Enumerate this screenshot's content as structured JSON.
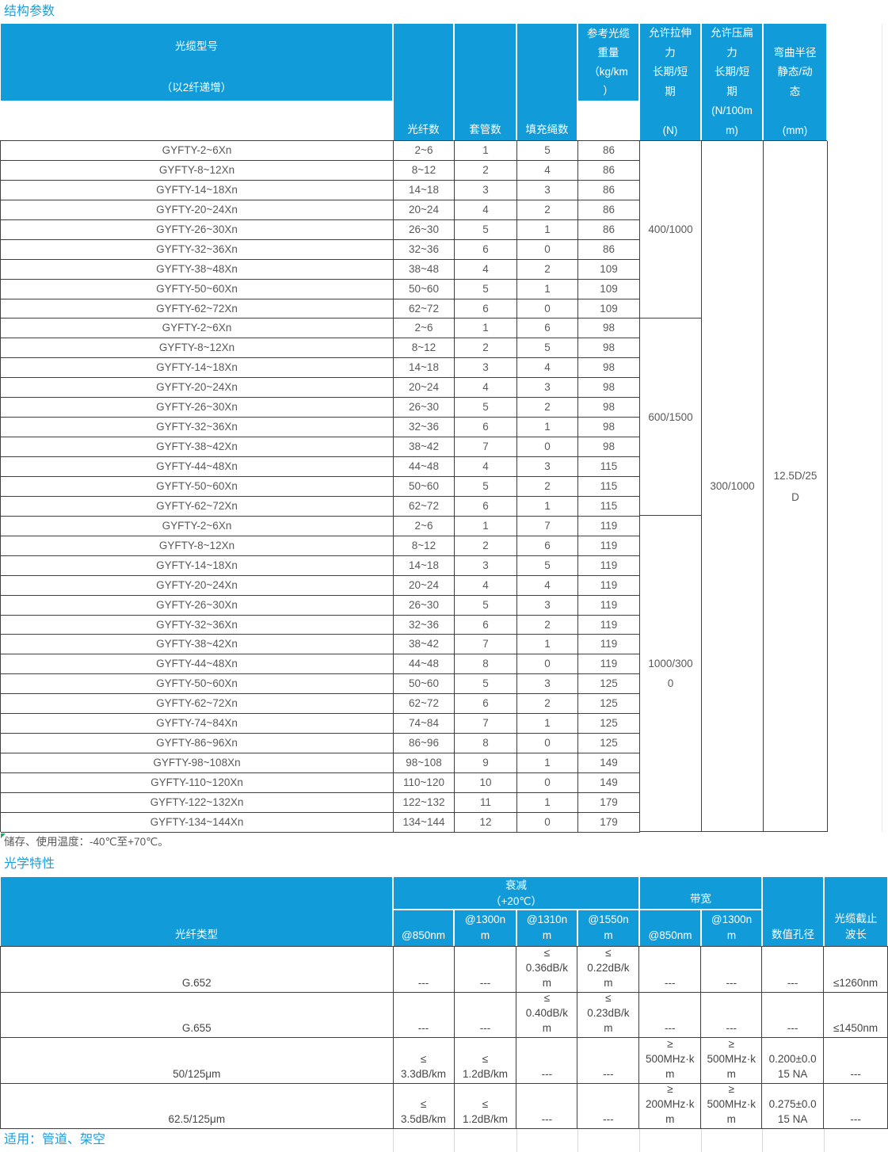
{
  "titles": {
    "structural": "结构参数",
    "optical": "光学特性",
    "temperature_note": "储存、使用温度：-40℃至+70℃。",
    "applicable": "适用：管道、架空"
  },
  "colors": {
    "header_blue": "#119BD8",
    "title_blue": "#1A9FDC",
    "border_dark": "#3F3F3F",
    "grid_light": "#D9D9D9",
    "text_gray": "#595959"
  },
  "structural_table": {
    "headers": {
      "model": "光缆型号\n\n（以2纤递增）",
      "fiber_count": "光纤数",
      "tube_count": "套管数",
      "filler_count": "填充绳数",
      "weight": "参考光缆\n重量\n（kg/km\n）",
      "tensile": "允许拉伸\n力\n长期/短\n期\n\n(N)",
      "crush": "允许压扁\n力\n长期/短\n期\n(N/100m\nm)",
      "bend": "\n弯曲半径\n静态/动\n态\n\n(mm)"
    },
    "rows": [
      {
        "model": "GYFTY-2~6Xn",
        "fiber": "2~6",
        "tube": "1",
        "filler": "5",
        "weight": "86"
      },
      {
        "model": "GYFTY-8~12Xn",
        "fiber": "8~12",
        "tube": "2",
        "filler": "4",
        "weight": "86"
      },
      {
        "model": "GYFTY-14~18Xn",
        "fiber": "14~18",
        "tube": "3",
        "filler": "3",
        "weight": "86"
      },
      {
        "model": "GYFTY-20~24Xn",
        "fiber": "20~24",
        "tube": "4",
        "filler": "2",
        "weight": "86"
      },
      {
        "model": "GYFTY-26~30Xn",
        "fiber": "26~30",
        "tube": "5",
        "filler": "1",
        "weight": "86"
      },
      {
        "model": "GYFTY-32~36Xn",
        "fiber": "32~36",
        "tube": "6",
        "filler": "0",
        "weight": "86"
      },
      {
        "model": "GYFTY-38~48Xn",
        "fiber": "38~48",
        "tube": "4",
        "filler": "2",
        "weight": "109"
      },
      {
        "model": "GYFTY-50~60Xn",
        "fiber": "50~60",
        "tube": "5",
        "filler": "1",
        "weight": "109"
      },
      {
        "model": "GYFTY-62~72Xn",
        "fiber": "62~72",
        "tube": "6",
        "filler": "0",
        "weight": "109"
      },
      {
        "model": "GYFTY-2~6Xn",
        "fiber": "2~6",
        "tube": "1",
        "filler": "6",
        "weight": "98"
      },
      {
        "model": "GYFTY-8~12Xn",
        "fiber": "8~12",
        "tube": "2",
        "filler": "5",
        "weight": "98"
      },
      {
        "model": "GYFTY-14~18Xn",
        "fiber": "14~18",
        "tube": "3",
        "filler": "4",
        "weight": "98"
      },
      {
        "model": "GYFTY-20~24Xn",
        "fiber": "20~24",
        "tube": "4",
        "filler": "3",
        "weight": "98"
      },
      {
        "model": "GYFTY-26~30Xn",
        "fiber": "26~30",
        "tube": "5",
        "filler": "2",
        "weight": "98"
      },
      {
        "model": "GYFTY-32~36Xn",
        "fiber": "32~36",
        "tube": "6",
        "filler": "1",
        "weight": "98"
      },
      {
        "model": "GYFTY-38~42Xn",
        "fiber": "38~42",
        "tube": "7",
        "filler": "0",
        "weight": "98"
      },
      {
        "model": "GYFTY-44~48Xn",
        "fiber": "44~48",
        "tube": "4",
        "filler": "3",
        "weight": "115"
      },
      {
        "model": "GYFTY-50~60Xn",
        "fiber": "50~60",
        "tube": "5",
        "filler": "2",
        "weight": "115"
      },
      {
        "model": "GYFTY-62~72Xn",
        "fiber": "62~72",
        "tube": "6",
        "filler": "1",
        "weight": "115"
      },
      {
        "model": "GYFTY-2~6Xn",
        "fiber": "2~6",
        "tube": "1",
        "filler": "7",
        "weight": "119"
      },
      {
        "model": "GYFTY-8~12Xn",
        "fiber": "8~12",
        "tube": "2",
        "filler": "6",
        "weight": "119"
      },
      {
        "model": "GYFTY-14~18Xn",
        "fiber": "14~18",
        "tube": "3",
        "filler": "5",
        "weight": "119"
      },
      {
        "model": "GYFTY-20~24Xn",
        "fiber": "20~24",
        "tube": "4",
        "filler": "4",
        "weight": "119"
      },
      {
        "model": "GYFTY-26~30Xn",
        "fiber": "26~30",
        "tube": "5",
        "filler": "3",
        "weight": "119"
      },
      {
        "model": "GYFTY-32~36Xn",
        "fiber": "32~36",
        "tube": "6",
        "filler": "2",
        "weight": "119"
      },
      {
        "model": "GYFTY-38~42Xn",
        "fiber": "38~42",
        "tube": "7",
        "filler": "1",
        "weight": "119"
      },
      {
        "model": "GYFTY-44~48Xn",
        "fiber": "44~48",
        "tube": "8",
        "filler": "0",
        "weight": "119"
      },
      {
        "model": "GYFTY-50~60Xn",
        "fiber": "50~60",
        "tube": "5",
        "filler": "3",
        "weight": "125"
      },
      {
        "model": "GYFTY-62~72Xn",
        "fiber": "62~72",
        "tube": "6",
        "filler": "2",
        "weight": "125"
      },
      {
        "model": "GYFTY-74~84Xn",
        "fiber": "74~84",
        "tube": "7",
        "filler": "1",
        "weight": "125"
      },
      {
        "model": "GYFTY-86~96Xn",
        "fiber": "86~96",
        "tube": "8",
        "filler": "0",
        "weight": "125"
      },
      {
        "model": "GYFTY-98~108Xn",
        "fiber": "98~108",
        "tube": "9",
        "filler": "1",
        "weight": "149"
      },
      {
        "model": "GYFTY-110~120Xn",
        "fiber": "110~120",
        "tube": "10",
        "filler": "0",
        "weight": "149"
      },
      {
        "model": "GYFTY-122~132Xn",
        "fiber": "122~132",
        "tube": "11",
        "filler": "1",
        "weight": "179"
      },
      {
        "model": "GYFTY-134~144Xn",
        "fiber": "134~144",
        "tube": "12",
        "filler": "0",
        "weight": "179"
      }
    ],
    "tensile_groups": [
      {
        "label": "400/1000",
        "rows": 9
      },
      {
        "label": "600/1500",
        "rows": 10
      },
      {
        "label": "1000/300\n0",
        "rows": 16
      }
    ],
    "crush_all": "300/1000",
    "bend_all": "12.5D/25\nD"
  },
  "optical_table": {
    "headers": {
      "fiber_type": "光纤类型",
      "attenuation_group": "衰减\n（+20℃）",
      "bandwidth_group": "带宽",
      "attenuation_sub": [
        "@850nm",
        "@1300n\nm",
        "@1310n\nm",
        "@1550n\nm"
      ],
      "bandwidth_sub": [
        "@850nm",
        "@1300n\nm"
      ],
      "na": "数值孔径",
      "cutoff": "光缆截止\n波长"
    },
    "rows": [
      {
        "type": "G.652",
        "values": [
          "---",
          "---",
          "≤\n0.36dB/k\nm",
          "≤\n0.22dB/k\nm",
          "---",
          "---",
          "---",
          "≤1260nm"
        ]
      },
      {
        "type": "G.655",
        "values": [
          "---",
          "---",
          "≤\n0.40dB/k\nm",
          "≤\n0.23dB/k\nm",
          "---",
          "---",
          "---",
          "≤1450nm"
        ]
      },
      {
        "type": "50/125μm",
        "values": [
          "≤\n3.3dB/km",
          "≤\n1.2dB/km",
          "---",
          "---",
          "≥\n500MHz·k\nm",
          "≥\n500MHz·k\nm",
          "0.200±0.0\n15 NA",
          "---"
        ]
      },
      {
        "type": "62.5/125μm",
        "values": [
          "≤\n3.5dB/km",
          "≤\n1.2dB/km",
          "---",
          "---",
          "≥\n200MHz·k\nm",
          "≥\n500MHz·k\nm",
          "0.275±0.0\n15 NA",
          "---"
        ]
      }
    ]
  }
}
